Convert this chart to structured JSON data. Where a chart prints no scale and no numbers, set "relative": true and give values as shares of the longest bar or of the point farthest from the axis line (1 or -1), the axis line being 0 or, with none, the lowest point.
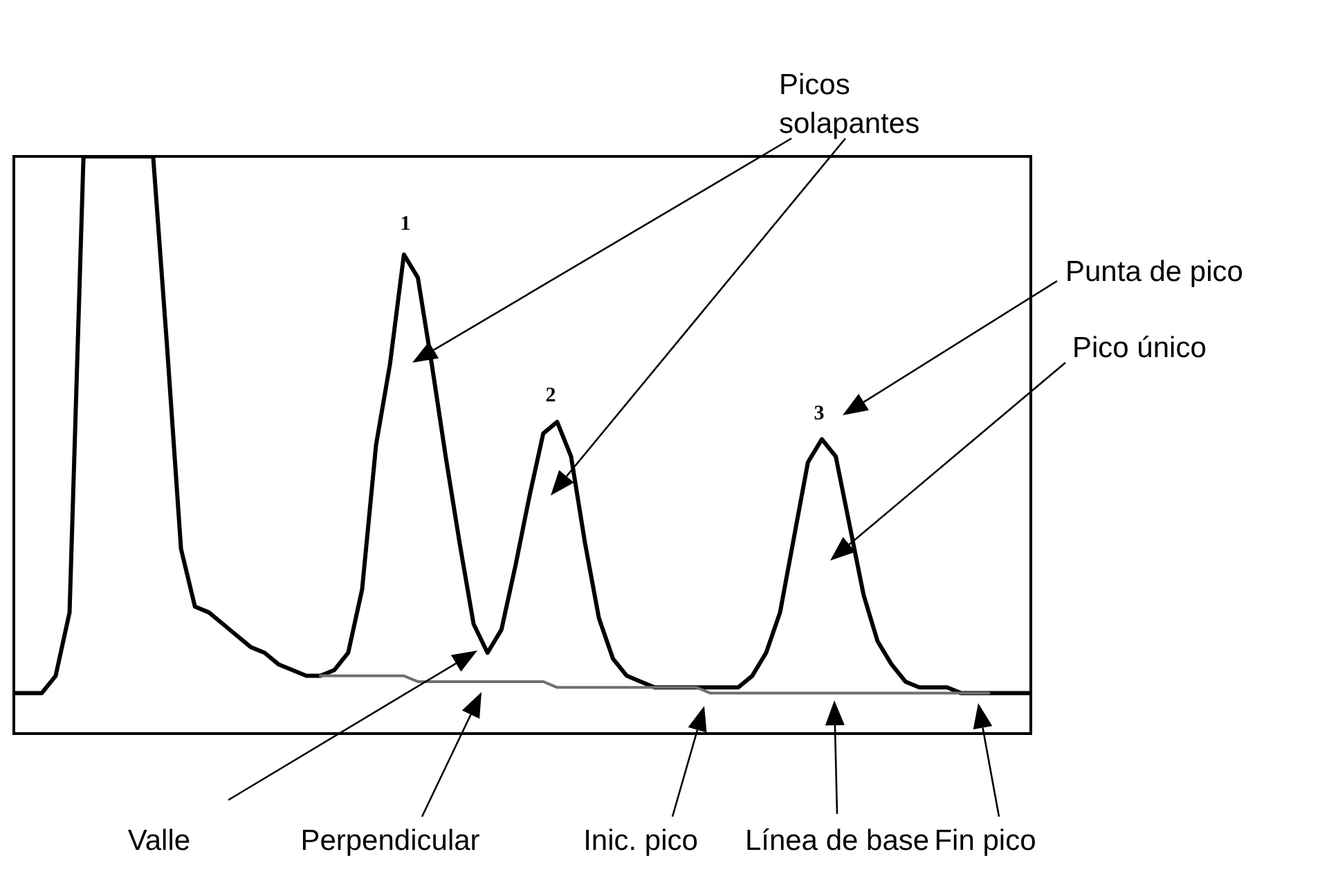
{
  "chart_data": {
    "type": "line",
    "relative": true,
    "marker": "none",
    "line_style": "solid",
    "categories": [
      null,
      null,
      null,
      null,
      null,
      null,
      null,
      null,
      null,
      null,
      null,
      null,
      null,
      null,
      null,
      null,
      null,
      null,
      null,
      null,
      null,
      null,
      null,
      null,
      null,
      null,
      null,
      null,
      null,
      null,
      null,
      null,
      null,
      null,
      null,
      null,
      null,
      null,
      null,
      null,
      null,
      null,
      null,
      null,
      null,
      null,
      null,
      null,
      null,
      null,
      null,
      null,
      null,
      null,
      null,
      null,
      null,
      null,
      null,
      null,
      null,
      null,
      null,
      null,
      null,
      null,
      null,
      null,
      null,
      null,
      null,
      null,
      null,
      null
    ],
    "series": [
      {
        "color": "#000000",
        "values": [
          0.07,
          0.07,
          0.07,
          0.1,
          0.21,
          1.0,
          1.0,
          1.0,
          1.0,
          1.0,
          1.0,
          0.67,
          0.32,
          0.22,
          0.21,
          0.19,
          0.17,
          0.15,
          0.14,
          0.12,
          0.11,
          0.1,
          0.1,
          0.11,
          0.14,
          0.25,
          0.5,
          0.64,
          0.83,
          0.79,
          0.64,
          0.48,
          0.33,
          0.19,
          0.14,
          0.18,
          0.29,
          0.41,
          0.52,
          0.54,
          0.48,
          0.33,
          0.2,
          0.13,
          0.1,
          0.09,
          0.08,
          0.08,
          0.08,
          0.08,
          0.08,
          0.08,
          0.08,
          0.1,
          0.14,
          0.21,
          0.34,
          0.47,
          0.51,
          0.48,
          0.36,
          0.24,
          0.16,
          0.12,
          0.09,
          0.08,
          0.08,
          0.08,
          0.07,
          0.07,
          0.07,
          0.07,
          0.07,
          0.07
        ]
      },
      {
        "color": "#707070",
        "values": [
          null,
          null,
          null,
          null,
          null,
          null,
          null,
          null,
          null,
          null,
          null,
          null,
          null,
          null,
          null,
          null,
          null,
          null,
          null,
          null,
          null,
          null,
          0.1,
          0.1,
          0.1,
          0.1,
          0.1,
          0.1,
          0.1,
          0.09,
          0.09,
          0.09,
          0.09,
          0.09,
          0.09,
          0.09,
          0.09,
          0.09,
          0.09,
          0.08,
          0.08,
          0.08,
          0.08,
          0.08,
          0.08,
          0.08,
          0.08,
          0.08,
          0.08,
          0.08,
          0.07,
          0.07,
          0.07,
          0.07,
          0.07,
          0.07,
          0.07,
          0.07,
          0.07,
          0.07,
          0.07,
          0.07,
          0.07,
          0.07,
          0.07,
          0.07,
          0.07,
          0.07,
          0.07,
          0.07,
          0.07,
          null,
          null,
          null
        ]
      }
    ],
    "annotations": [
      "Picos solapantes",
      "Punta de pico",
      "Pico único",
      "Valle",
      "Perpendicular",
      "Inic. pico",
      "Línea de base",
      "Fin pico",
      "1",
      "2",
      "3"
    ]
  }
}
